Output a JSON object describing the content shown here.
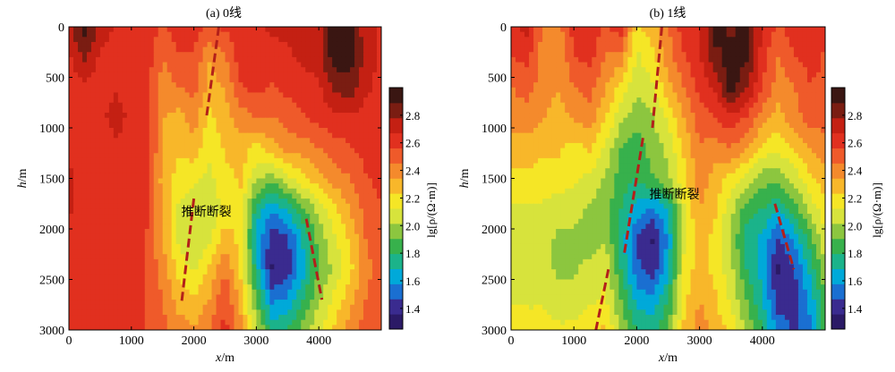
{
  "chart_data": [
    {
      "type": "heatmap",
      "title": "(a)  0线",
      "xlabel_italic": "x",
      "xlabel_unit": "/m",
      "ylabel_italic": "h",
      "ylabel_unit": "/m",
      "xlim": [
        0,
        5000
      ],
      "ylim": [
        0,
        3000
      ],
      "y_inverted": true,
      "x_ticks": [
        0,
        1000,
        2000,
        3000,
        4000
      ],
      "y_ticks": [
        0,
        500,
        1000,
        1500,
        2000,
        2500,
        3000
      ],
      "colorbar": {
        "label": "lg[ρ/(Ω·m)]",
        "range": [
          1.25,
          3.0
        ],
        "ticks": [
          "1.4",
          "1.6",
          "1.8",
          "2.0",
          "2.2",
          "2.4",
          "2.6",
          "2.8"
        ],
        "colors": [
          "#2b1a66",
          "#3a2b8f",
          "#1a6fd1",
          "#00a9d9",
          "#1bb38a",
          "#37b14c",
          "#8cc63f",
          "#d7e33c",
          "#f5e626",
          "#f8b72a",
          "#f48a2c",
          "#ef5a2a",
          "#e1301f",
          "#c42013",
          "#7a1d12",
          "#3a1612"
        ]
      },
      "annotation": "推断断裂",
      "cells": {
        "x": [
          0,
          250,
          500,
          750,
          1000,
          1250,
          1500,
          1750,
          2000,
          2250,
          2500,
          2750,
          3000,
          3250,
          3500,
          3750,
          4000,
          4250,
          4500,
          4750,
          5000
        ],
        "h": [
          0,
          300,
          600,
          900,
          1200,
          1500,
          1800,
          2100,
          2400,
          2700,
          3000
        ],
        "values": [
          [
            2.75,
            2.95,
            2.75,
            2.65,
            2.62,
            2.62,
            2.55,
            2.62,
            2.62,
            2.55,
            2.58,
            2.62,
            2.65,
            2.7,
            2.7,
            2.75,
            2.75,
            2.95,
            2.95,
            2.7,
            2.65
          ],
          [
            2.65,
            2.8,
            2.65,
            2.62,
            2.62,
            2.62,
            2.45,
            2.55,
            2.55,
            2.35,
            2.45,
            2.62,
            2.65,
            2.62,
            2.65,
            2.7,
            2.75,
            2.95,
            2.95,
            2.75,
            2.65
          ],
          [
            2.62,
            2.65,
            2.62,
            2.65,
            2.62,
            2.6,
            2.4,
            2.45,
            2.5,
            2.3,
            2.35,
            2.55,
            2.6,
            2.55,
            2.6,
            2.6,
            2.65,
            2.8,
            2.85,
            2.7,
            2.62
          ],
          [
            2.62,
            2.65,
            2.62,
            2.75,
            2.62,
            2.6,
            2.35,
            2.3,
            2.4,
            2.2,
            2.3,
            2.4,
            2.45,
            2.45,
            2.5,
            2.55,
            2.6,
            2.65,
            2.65,
            2.62,
            2.62
          ],
          [
            2.62,
            2.65,
            2.6,
            2.62,
            2.62,
            2.6,
            2.35,
            2.25,
            2.3,
            2.15,
            2.25,
            2.3,
            2.2,
            2.3,
            2.4,
            2.4,
            2.45,
            2.5,
            2.55,
            2.6,
            2.62
          ],
          [
            2.7,
            2.62,
            2.6,
            2.62,
            2.62,
            2.58,
            2.3,
            2.2,
            2.15,
            2.1,
            2.2,
            2.25,
            2.05,
            1.95,
            2.1,
            2.2,
            2.3,
            2.4,
            2.45,
            2.55,
            2.6
          ],
          [
            2.7,
            2.62,
            2.62,
            2.62,
            2.62,
            2.58,
            2.35,
            2.1,
            2.05,
            2.05,
            2.15,
            2.2,
            1.75,
            1.6,
            1.7,
            1.9,
            2.05,
            2.2,
            2.35,
            2.5,
            2.55
          ],
          [
            2.62,
            2.62,
            2.6,
            2.62,
            2.62,
            2.55,
            2.35,
            2.1,
            2.0,
            2.1,
            2.3,
            2.2,
            1.65,
            1.4,
            1.45,
            1.7,
            1.95,
            2.1,
            2.25,
            2.45,
            2.55
          ],
          [
            2.62,
            2.62,
            2.6,
            2.62,
            2.62,
            2.55,
            2.4,
            2.2,
            2.1,
            2.25,
            2.45,
            2.2,
            1.75,
            1.35,
            1.4,
            1.65,
            1.9,
            2.05,
            2.2,
            2.4,
            2.55
          ],
          [
            2.62,
            2.62,
            2.6,
            2.62,
            2.62,
            2.55,
            2.45,
            2.3,
            2.25,
            2.35,
            2.55,
            2.3,
            1.9,
            1.55,
            1.6,
            1.8,
            2.0,
            2.15,
            2.3,
            2.45,
            2.55
          ],
          [
            2.62,
            2.62,
            2.6,
            2.62,
            2.62,
            2.55,
            2.5,
            2.4,
            2.35,
            2.45,
            2.6,
            2.4,
            2.05,
            1.75,
            1.8,
            1.95,
            2.1,
            2.25,
            2.4,
            2.5,
            2.55
          ]
        ]
      },
      "faults": [
        {
          "points": [
            [
              2400,
              0
            ],
            [
              2200,
              900
            ]
          ]
        },
        {
          "points": [
            [
              2000,
              1700
            ],
            [
              1800,
              2750
            ]
          ]
        },
        {
          "points": [
            [
              3800,
              1900
            ],
            [
              4050,
              2700
            ]
          ]
        }
      ]
    },
    {
      "type": "heatmap",
      "title": "(b)  1线",
      "xlabel_italic": "x",
      "xlabel_unit": "/m",
      "ylabel_italic": "h",
      "ylabel_unit": "/m",
      "xlim": [
        0,
        5000
      ],
      "ylim": [
        0,
        3000
      ],
      "y_inverted": true,
      "x_ticks": [
        0,
        1000,
        2000,
        3000,
        4000
      ],
      "y_ticks": [
        0,
        500,
        1000,
        1500,
        2000,
        2500,
        3000
      ],
      "colorbar": {
        "label": "lg[ρ/(Ω·m)]",
        "range": [
          1.25,
          3.0
        ],
        "ticks": [
          "1.4",
          "1.6",
          "1.8",
          "2.0",
          "2.2",
          "2.4",
          "2.6",
          "2.8"
        ],
        "colors": [
          "#2b1a66",
          "#3a2b8f",
          "#1a6fd1",
          "#00a9d9",
          "#1bb38a",
          "#37b14c",
          "#8cc63f",
          "#d7e33c",
          "#f5e626",
          "#f8b72a",
          "#f48a2c",
          "#ef5a2a",
          "#e1301f",
          "#c42013",
          "#7a1d12",
          "#3a1612"
        ]
      },
      "annotation": "推断断裂",
      "cells": {
        "x": [
          0,
          250,
          500,
          750,
          1000,
          1250,
          1500,
          1750,
          2000,
          2250,
          2500,
          2750,
          3000,
          3250,
          3500,
          3750,
          4000,
          4250,
          4500,
          4750,
          5000
        ],
        "h": [
          0,
          300,
          600,
          900,
          1200,
          1500,
          1800,
          2100,
          2400,
          2700,
          3000
        ],
        "values": [
          [
            2.65,
            2.7,
            2.45,
            2.4,
            2.62,
            2.65,
            2.55,
            2.62,
            2.2,
            2.3,
            2.45,
            2.62,
            2.65,
            2.95,
            2.85,
            2.95,
            2.65,
            2.55,
            2.62,
            2.65,
            2.6
          ],
          [
            2.55,
            2.6,
            2.4,
            2.35,
            2.55,
            2.6,
            2.45,
            2.4,
            2.1,
            2.2,
            2.4,
            2.55,
            2.65,
            2.85,
            2.95,
            2.9,
            2.62,
            2.45,
            2.55,
            2.6,
            2.55
          ],
          [
            2.45,
            2.5,
            2.4,
            2.35,
            2.45,
            2.5,
            2.35,
            2.2,
            2.05,
            2.1,
            2.3,
            2.45,
            2.6,
            2.7,
            2.95,
            2.8,
            2.55,
            2.4,
            2.45,
            2.55,
            2.55
          ],
          [
            2.4,
            2.4,
            2.35,
            2.3,
            2.35,
            2.4,
            2.25,
            2.05,
            1.95,
            2.0,
            2.15,
            2.35,
            2.5,
            2.55,
            2.65,
            2.55,
            2.4,
            2.3,
            2.4,
            2.5,
            2.5
          ],
          [
            2.3,
            2.3,
            2.25,
            2.25,
            2.2,
            2.25,
            2.1,
            1.9,
            1.85,
            1.95,
            2.05,
            2.25,
            2.45,
            2.4,
            2.45,
            2.35,
            2.2,
            2.15,
            2.25,
            2.35,
            2.4
          ],
          [
            2.2,
            2.2,
            2.2,
            2.2,
            2.15,
            2.1,
            2.0,
            1.85,
            1.8,
            1.9,
            2.0,
            2.2,
            2.4,
            2.3,
            2.2,
            2.1,
            1.95,
            1.95,
            2.05,
            2.2,
            2.3
          ],
          [
            2.1,
            2.1,
            2.1,
            2.05,
            2.05,
            2.0,
            1.95,
            1.8,
            1.65,
            1.55,
            1.7,
            2.1,
            2.35,
            2.25,
            2.05,
            1.85,
            1.8,
            1.7,
            1.85,
            2.05,
            2.2
          ],
          [
            2.05,
            2.05,
            2.05,
            2.0,
            2.0,
            1.95,
            2.0,
            1.75,
            1.45,
            1.35,
            1.6,
            2.1,
            2.3,
            2.2,
            2.0,
            1.75,
            1.65,
            1.45,
            1.6,
            1.85,
            2.1
          ],
          [
            2.05,
            2.05,
            2.05,
            2.0,
            2.0,
            2.05,
            2.1,
            1.8,
            1.5,
            1.4,
            1.65,
            2.15,
            2.3,
            2.2,
            2.05,
            1.8,
            1.65,
            1.35,
            1.45,
            1.7,
            2.0
          ],
          [
            2.1,
            2.1,
            2.1,
            2.05,
            2.05,
            2.1,
            2.15,
            1.9,
            1.65,
            1.6,
            1.8,
            2.2,
            2.35,
            2.25,
            2.1,
            1.9,
            1.7,
            1.4,
            1.4,
            1.6,
            1.9
          ],
          [
            2.2,
            2.2,
            2.2,
            2.15,
            2.15,
            2.2,
            2.25,
            2.0,
            1.8,
            1.75,
            1.9,
            2.25,
            2.4,
            2.3,
            2.2,
            2.0,
            1.8,
            1.55,
            1.45,
            1.55,
            1.85
          ]
        ]
      },
      "faults": [
        {
          "points": [
            [
              2400,
              0
            ],
            [
              2250,
              1000
            ]
          ]
        },
        {
          "points": [
            [
              2100,
              1100
            ],
            [
              1800,
              2250
            ]
          ]
        },
        {
          "points": [
            [
              1550,
              2400
            ],
            [
              1350,
              3000
            ]
          ]
        },
        {
          "points": [
            [
              4200,
              1750
            ],
            [
              4500,
              2400
            ]
          ]
        }
      ]
    }
  ]
}
